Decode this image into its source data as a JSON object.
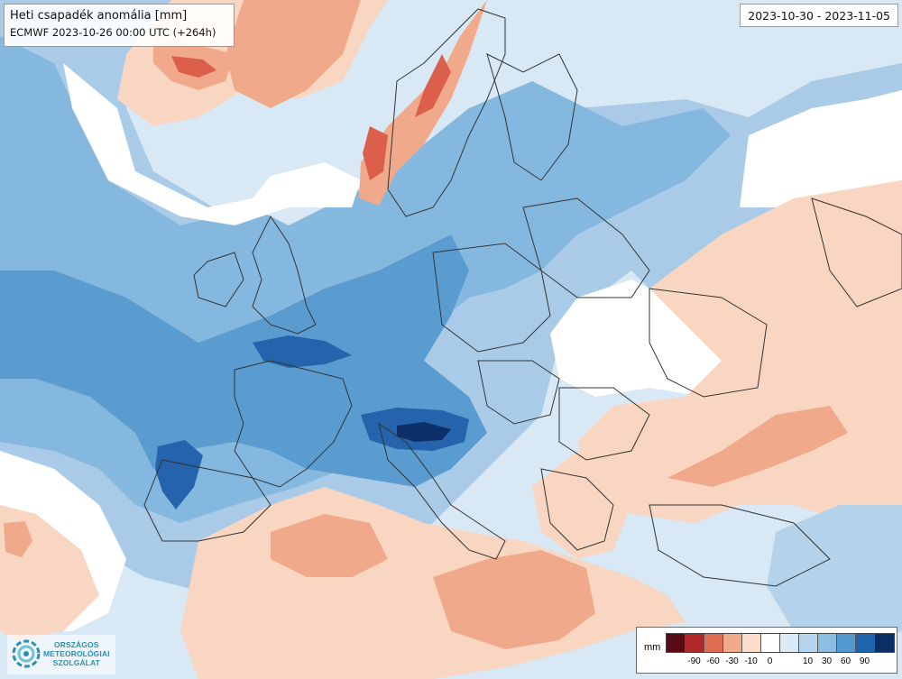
{
  "map": {
    "title": "Heti csapadék anomália [mm]",
    "subtitle": "ECMWF 2023-10-26 00:00 UTC (+264h)",
    "period": "2023-10-30 - 2023-11-05"
  },
  "legend": {
    "unit": "mm",
    "colors": [
      "#5a0a14",
      "#b0282a",
      "#df6e53",
      "#f0ab8d",
      "#fbdcca",
      "#ffffff",
      "#dbeaf5",
      "#b7d5ec",
      "#8dbde0",
      "#5399cf",
      "#1d64ad",
      "#0a2e66"
    ],
    "labels": [
      "-90",
      "-60",
      "-30",
      "-10",
      "0",
      "10",
      "30",
      "60",
      "90"
    ]
  },
  "logo": {
    "line1": "ORSZÁGOS",
    "line2": "METEOROLÓGIAI",
    "line3": "SZOLGÁLAT",
    "accent_color": "#2a8fb2"
  },
  "palette": {
    "ocean_blue": "#85b8de",
    "pale_blue": "#d8e8f4",
    "light_blue": "#b4d3eb",
    "mid_blue": "#5a9bd0",
    "deep_blue": "#2563ad",
    "navy": "#0c2f68",
    "pale_orange": "#f8d6c2",
    "orange": "#f0a98a",
    "red": "#dc5f4b",
    "border_color": "#333333"
  }
}
